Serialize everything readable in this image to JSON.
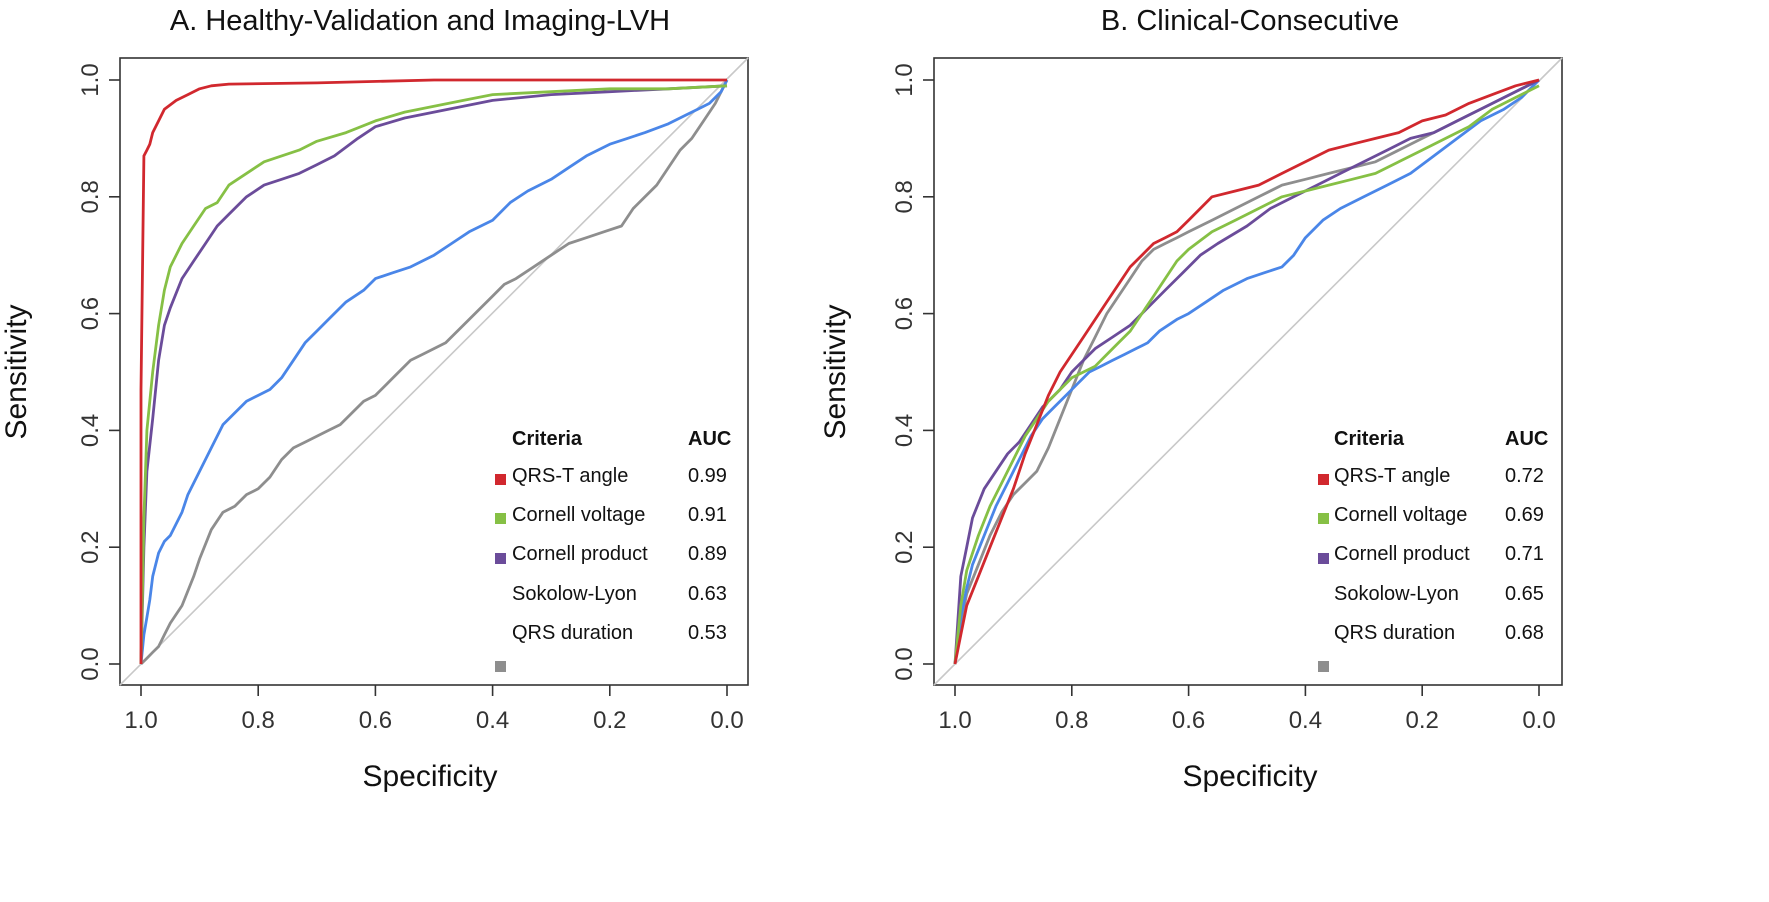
{
  "chart_data": [
    {
      "type": "line",
      "title": "A. Healthy-Validation and Imaging-LVH",
      "xlabel": "Specificity",
      "ylabel": "Sensitivity",
      "xlim": [
        1.0,
        0.0
      ],
      "ylim": [
        0.0,
        1.0
      ],
      "x_ticks": [
        "1.0",
        "0.8",
        "0.6",
        "0.4",
        "0.2",
        "0.0"
      ],
      "y_ticks": [
        "0.0",
        "0.2",
        "0.4",
        "0.6",
        "0.8",
        "1.0"
      ],
      "grid": false,
      "legend": {
        "position": "bottom-right",
        "header_name": "Criteria",
        "header_value": "AUC",
        "entries": [
          {
            "label": "QRS-T angle",
            "auc": "0.99",
            "color": "#d1282e"
          },
          {
            "label": "Cornell voltage",
            "auc": "0.91",
            "color": "#86c045"
          },
          {
            "label": "Cornell product",
            "auc": "0.89",
            "color": "#6b4c9a"
          },
          {
            "label": "Sokolow-Lyon",
            "auc": "0.63",
            "color": "#4a86e8"
          },
          {
            "label": "QRS duration",
            "auc": "0.53",
            "color": "#8e8e8e"
          }
        ]
      },
      "series": [
        {
          "name": "QRS-T angle",
          "color": "#d1282e",
          "x": [
            1.0,
            1.0,
            0.995,
            0.99,
            0.985,
            0.98,
            0.97,
            0.96,
            0.94,
            0.92,
            0.9,
            0.88,
            0.85,
            0.7,
            0.5,
            0.3,
            0.0
          ],
          "y": [
            0.0,
            0.47,
            0.87,
            0.88,
            0.89,
            0.91,
            0.93,
            0.95,
            0.965,
            0.975,
            0.985,
            0.99,
            0.993,
            0.995,
            1.0,
            1.0,
            1.0
          ]
        },
        {
          "name": "Cornell voltage",
          "color": "#86c045",
          "x": [
            1.0,
            0.995,
            0.99,
            0.98,
            0.97,
            0.96,
            0.95,
            0.93,
            0.91,
            0.89,
            0.87,
            0.85,
            0.82,
            0.79,
            0.76,
            0.73,
            0.7,
            0.65,
            0.6,
            0.55,
            0.5,
            0.45,
            0.4,
            0.3,
            0.2,
            0.1,
            0.0
          ],
          "y": [
            0.0,
            0.25,
            0.4,
            0.5,
            0.58,
            0.64,
            0.68,
            0.72,
            0.75,
            0.78,
            0.79,
            0.82,
            0.84,
            0.86,
            0.87,
            0.88,
            0.895,
            0.91,
            0.93,
            0.945,
            0.955,
            0.965,
            0.975,
            0.98,
            0.985,
            0.985,
            0.99
          ]
        },
        {
          "name": "Cornell product",
          "color": "#6b4c9a",
          "x": [
            1.0,
            0.995,
            0.99,
            0.98,
            0.97,
            0.96,
            0.95,
            0.93,
            0.91,
            0.89,
            0.87,
            0.85,
            0.82,
            0.79,
            0.76,
            0.73,
            0.7,
            0.67,
            0.63,
            0.6,
            0.55,
            0.5,
            0.45,
            0.4,
            0.3,
            0.2,
            0.1,
            0.0
          ],
          "y": [
            0.0,
            0.2,
            0.33,
            0.42,
            0.52,
            0.58,
            0.61,
            0.66,
            0.69,
            0.72,
            0.75,
            0.77,
            0.8,
            0.82,
            0.83,
            0.84,
            0.855,
            0.87,
            0.9,
            0.92,
            0.935,
            0.945,
            0.955,
            0.965,
            0.975,
            0.98,
            0.985,
            0.99
          ]
        },
        {
          "name": "Sokolow-Lyon",
          "color": "#4a86e8",
          "x": [
            1.0,
            0.995,
            0.99,
            0.985,
            0.98,
            0.97,
            0.96,
            0.95,
            0.93,
            0.92,
            0.9,
            0.88,
            0.86,
            0.84,
            0.82,
            0.8,
            0.78,
            0.76,
            0.74,
            0.72,
            0.7,
            0.68,
            0.65,
            0.62,
            0.6,
            0.57,
            0.54,
            0.5,
            0.47,
            0.44,
            0.42,
            0.4,
            0.37,
            0.34,
            0.3,
            0.27,
            0.24,
            0.2,
            0.17,
            0.14,
            0.1,
            0.07,
            0.05,
            0.03,
            0.01,
            0.0
          ],
          "y": [
            0.0,
            0.05,
            0.08,
            0.11,
            0.15,
            0.19,
            0.21,
            0.22,
            0.26,
            0.29,
            0.33,
            0.37,
            0.41,
            0.43,
            0.45,
            0.46,
            0.47,
            0.49,
            0.52,
            0.55,
            0.57,
            0.59,
            0.62,
            0.64,
            0.66,
            0.67,
            0.68,
            0.7,
            0.72,
            0.74,
            0.75,
            0.76,
            0.79,
            0.81,
            0.83,
            0.85,
            0.87,
            0.89,
            0.9,
            0.91,
            0.925,
            0.94,
            0.95,
            0.96,
            0.98,
            1.0
          ]
        },
        {
          "name": "QRS duration",
          "color": "#8e8e8e",
          "x": [
            1.0,
            0.99,
            0.98,
            0.97,
            0.96,
            0.95,
            0.93,
            0.91,
            0.9,
            0.88,
            0.86,
            0.84,
            0.82,
            0.8,
            0.78,
            0.76,
            0.74,
            0.72,
            0.7,
            0.68,
            0.66,
            0.64,
            0.62,
            0.6,
            0.58,
            0.56,
            0.54,
            0.52,
            0.5,
            0.48,
            0.45,
            0.42,
            0.4,
            0.38,
            0.36,
            0.33,
            0.3,
            0.27,
            0.24,
            0.21,
            0.18,
            0.16,
            0.14,
            0.12,
            0.1,
            0.08,
            0.06,
            0.04,
            0.02,
            0.0
          ],
          "y": [
            0.0,
            0.01,
            0.02,
            0.03,
            0.05,
            0.07,
            0.1,
            0.15,
            0.18,
            0.23,
            0.26,
            0.27,
            0.29,
            0.3,
            0.32,
            0.35,
            0.37,
            0.38,
            0.39,
            0.4,
            0.41,
            0.43,
            0.45,
            0.46,
            0.48,
            0.5,
            0.52,
            0.53,
            0.54,
            0.55,
            0.58,
            0.61,
            0.63,
            0.65,
            0.66,
            0.68,
            0.7,
            0.72,
            0.73,
            0.74,
            0.75,
            0.78,
            0.8,
            0.82,
            0.85,
            0.88,
            0.9,
            0.93,
            0.96,
            1.0
          ]
        }
      ]
    },
    {
      "type": "line",
      "title": "B. Clinical-Consecutive",
      "xlabel": "Specificity",
      "ylabel": "Sensitivity",
      "xlim": [
        1.0,
        0.0
      ],
      "ylim": [
        0.0,
        1.0
      ],
      "x_ticks": [
        "1.0",
        "0.8",
        "0.6",
        "0.4",
        "0.2",
        "0.0"
      ],
      "y_ticks": [
        "0.0",
        "0.2",
        "0.4",
        "0.6",
        "0.8",
        "1.0"
      ],
      "grid": false,
      "legend": {
        "position": "bottom-right",
        "header_name": "Criteria",
        "header_value": "AUC",
        "entries": [
          {
            "label": "QRS-T angle",
            "auc": "0.72",
            "color": "#d1282e"
          },
          {
            "label": "Cornell voltage",
            "auc": "0.69",
            "color": "#86c045"
          },
          {
            "label": "Cornell product",
            "auc": "0.71",
            "color": "#6b4c9a"
          },
          {
            "label": "Sokolow-Lyon",
            "auc": "0.65",
            "color": "#4a86e8"
          },
          {
            "label": "QRS duration",
            "auc": "0.68",
            "color": "#8e8e8e"
          }
        ]
      },
      "series": [
        {
          "name": "QRS-T angle",
          "color": "#d1282e",
          "x": [
            1.0,
            0.99,
            0.98,
            0.96,
            0.94,
            0.92,
            0.9,
            0.88,
            0.86,
            0.84,
            0.82,
            0.8,
            0.78,
            0.76,
            0.74,
            0.72,
            0.7,
            0.68,
            0.66,
            0.64,
            0.62,
            0.6,
            0.58,
            0.56,
            0.52,
            0.48,
            0.44,
            0.4,
            0.36,
            0.32,
            0.28,
            0.24,
            0.2,
            0.16,
            0.12,
            0.08,
            0.04,
            0.0
          ],
          "y": [
            0.0,
            0.05,
            0.1,
            0.15,
            0.2,
            0.25,
            0.3,
            0.36,
            0.41,
            0.46,
            0.5,
            0.53,
            0.56,
            0.59,
            0.62,
            0.65,
            0.68,
            0.7,
            0.72,
            0.73,
            0.74,
            0.76,
            0.78,
            0.8,
            0.81,
            0.82,
            0.84,
            0.86,
            0.88,
            0.89,
            0.9,
            0.91,
            0.93,
            0.94,
            0.96,
            0.975,
            0.99,
            1.0
          ]
        },
        {
          "name": "Cornell voltage",
          "color": "#86c045",
          "x": [
            1.0,
            0.99,
            0.98,
            0.96,
            0.94,
            0.92,
            0.9,
            0.88,
            0.86,
            0.84,
            0.82,
            0.8,
            0.78,
            0.76,
            0.74,
            0.72,
            0.7,
            0.68,
            0.66,
            0.64,
            0.62,
            0.6,
            0.56,
            0.52,
            0.48,
            0.44,
            0.4,
            0.36,
            0.32,
            0.28,
            0.24,
            0.2,
            0.16,
            0.12,
            0.08,
            0.04,
            0.0
          ],
          "y": [
            0.0,
            0.1,
            0.16,
            0.22,
            0.27,
            0.31,
            0.35,
            0.39,
            0.42,
            0.45,
            0.47,
            0.49,
            0.5,
            0.51,
            0.53,
            0.55,
            0.57,
            0.6,
            0.63,
            0.66,
            0.69,
            0.71,
            0.74,
            0.76,
            0.78,
            0.8,
            0.81,
            0.82,
            0.83,
            0.84,
            0.86,
            0.88,
            0.9,
            0.92,
            0.95,
            0.97,
            0.99
          ]
        },
        {
          "name": "Cornell product",
          "color": "#6b4c9a",
          "x": [
            1.0,
            0.99,
            0.98,
            0.97,
            0.95,
            0.93,
            0.91,
            0.89,
            0.87,
            0.85,
            0.82,
            0.8,
            0.78,
            0.76,
            0.73,
            0.7,
            0.67,
            0.64,
            0.61,
            0.58,
            0.55,
            0.5,
            0.46,
            0.42,
            0.38,
            0.34,
            0.3,
            0.26,
            0.22,
            0.18,
            0.14,
            0.1,
            0.06,
            0.03,
            0.0
          ],
          "y": [
            0.0,
            0.15,
            0.2,
            0.25,
            0.3,
            0.33,
            0.36,
            0.38,
            0.41,
            0.44,
            0.47,
            0.5,
            0.52,
            0.54,
            0.56,
            0.58,
            0.61,
            0.64,
            0.67,
            0.7,
            0.72,
            0.75,
            0.78,
            0.8,
            0.82,
            0.84,
            0.86,
            0.88,
            0.9,
            0.91,
            0.93,
            0.95,
            0.97,
            0.985,
            1.0
          ]
        },
        {
          "name": "Sokolow-Lyon",
          "color": "#4a86e8",
          "x": [
            1.0,
            0.99,
            0.98,
            0.97,
            0.95,
            0.93,
            0.91,
            0.89,
            0.87,
            0.85,
            0.83,
            0.81,
            0.79,
            0.77,
            0.75,
            0.73,
            0.71,
            0.69,
            0.67,
            0.65,
            0.62,
            0.6,
            0.57,
            0.54,
            0.5,
            0.47,
            0.44,
            0.42,
            0.4,
            0.37,
            0.34,
            0.3,
            0.26,
            0.22,
            0.18,
            0.14,
            0.1,
            0.06,
            0.03,
            0.0
          ],
          "y": [
            0.0,
            0.08,
            0.13,
            0.17,
            0.22,
            0.27,
            0.31,
            0.35,
            0.39,
            0.42,
            0.44,
            0.46,
            0.48,
            0.5,
            0.51,
            0.52,
            0.53,
            0.54,
            0.55,
            0.57,
            0.59,
            0.6,
            0.62,
            0.64,
            0.66,
            0.67,
            0.68,
            0.7,
            0.73,
            0.76,
            0.78,
            0.8,
            0.82,
            0.84,
            0.87,
            0.9,
            0.93,
            0.95,
            0.97,
            1.0
          ]
        },
        {
          "name": "QRS duration",
          "color": "#8e8e8e",
          "x": [
            1.0,
            0.99,
            0.98,
            0.96,
            0.94,
            0.92,
            0.9,
            0.88,
            0.86,
            0.84,
            0.82,
            0.8,
            0.78,
            0.76,
            0.74,
            0.72,
            0.7,
            0.68,
            0.66,
            0.64,
            0.62,
            0.6,
            0.56,
            0.52,
            0.48,
            0.44,
            0.4,
            0.36,
            0.32,
            0.28,
            0.24,
            0.2,
            0.16,
            0.12,
            0.08,
            0.04,
            0.0
          ],
          "y": [
            0.0,
            0.07,
            0.12,
            0.17,
            0.22,
            0.26,
            0.29,
            0.31,
            0.33,
            0.37,
            0.42,
            0.47,
            0.52,
            0.56,
            0.6,
            0.63,
            0.66,
            0.69,
            0.71,
            0.72,
            0.73,
            0.74,
            0.76,
            0.78,
            0.8,
            0.82,
            0.83,
            0.84,
            0.85,
            0.86,
            0.88,
            0.9,
            0.92,
            0.94,
            0.96,
            0.98,
            1.0
          ]
        }
      ]
    }
  ]
}
